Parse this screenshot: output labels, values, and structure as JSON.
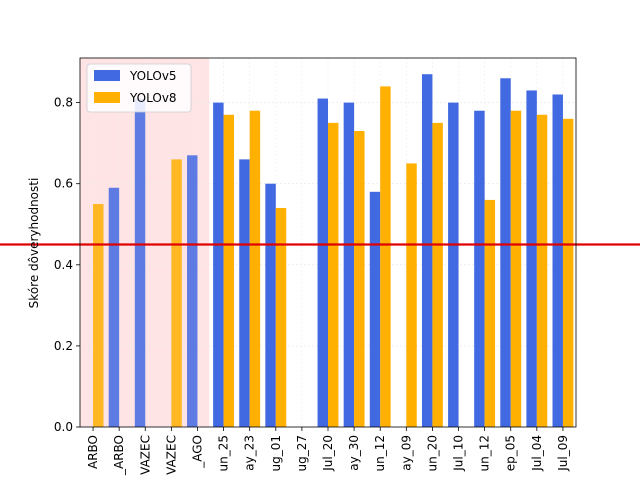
{
  "chart_data": {
    "type": "bar",
    "title": "",
    "xlabel": "",
    "ylabel": "Skóre dôveryhodnosti",
    "ylim": [
      0,
      0.91
    ],
    "yticks": [
      0.0,
      0.2,
      0.4,
      0.6,
      0.8
    ],
    "ytick_labels": [
      "0.0",
      "0.2",
      "0.4",
      "0.6",
      "0.8"
    ],
    "grid": true,
    "legend_position": "top-left",
    "categories": [
      "ARBO",
      "_ARBO",
      "VAZEC",
      "VAZEC",
      "_AGO",
      "un_25",
      "ay_23",
      "ug_01",
      "ug_27",
      "Jul_20",
      "ay_30",
      "un_12",
      "ay_09",
      "un_20",
      "Jul_10",
      "un_12",
      "ep_05",
      "Jul_04",
      "Jul_09"
    ],
    "series": [
      {
        "name": "YOLOv5",
        "color": "#4169e1",
        "values": [
          null,
          0.59,
          0.81,
          null,
          0.67,
          0.8,
          0.66,
          0.6,
          null,
          0.81,
          0.8,
          0.58,
          null,
          0.87,
          0.8,
          0.78,
          0.86,
          0.83,
          0.82
        ]
      },
      {
        "name": "YOLOv8",
        "color": "#ffb000",
        "values": [
          0.55,
          null,
          null,
          0.66,
          null,
          0.77,
          0.78,
          0.54,
          null,
          0.75,
          0.73,
          0.84,
          0.65,
          0.75,
          null,
          0.56,
          0.78,
          0.77,
          0.76
        ]
      }
    ],
    "threshold": {
      "value": 0.45,
      "color": "#e00000"
    },
    "highlight_region": {
      "from_category": 0,
      "to_category": 4,
      "color": "#ffe4e6"
    }
  }
}
